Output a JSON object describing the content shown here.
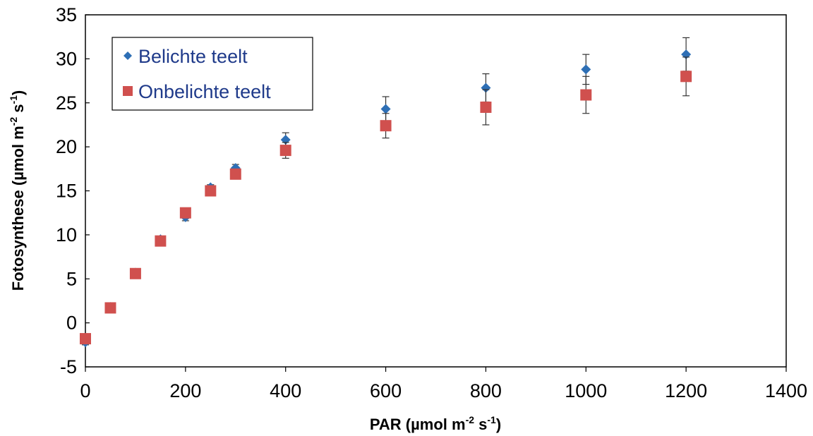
{
  "chart_data": {
    "type": "scatter",
    "xlabel": "PAR (µmol m",
    "xlabel_sup1": "-2",
    "xlabel_mid": " s",
    "xlabel_sup2": "-1",
    "xlabel_end": ")",
    "ylabel": "Fotosynthese (µmol m",
    "ylabel_sup1": "-2",
    "ylabel_mid": " s",
    "ylabel_sup2": "-1",
    "ylabel_end": ")",
    "xlim": [
      0,
      1400
    ],
    "ylim": [
      -5,
      35
    ],
    "xticks": [
      0,
      200,
      400,
      600,
      800,
      1000,
      1200,
      1400
    ],
    "yticks": [
      -5,
      0,
      5,
      10,
      15,
      20,
      25,
      30,
      35
    ],
    "grid": false,
    "legend_position": "top-left",
    "series": [
      {
        "name": "Belichte teelt",
        "marker": "diamond",
        "color": "#2e6fb5",
        "x": [
          0,
          50,
          100,
          150,
          200,
          250,
          300,
          400,
          600,
          800,
          1000,
          1200
        ],
        "y": [
          -2.2,
          1.8,
          5.7,
          9.5,
          12.0,
          15.4,
          17.6,
          20.8,
          24.3,
          26.7,
          28.8,
          30.5
        ],
        "err": [
          0.3,
          0.2,
          0.3,
          0.3,
          0.4,
          0.3,
          0.4,
          0.8,
          1.4,
          1.6,
          1.7,
          1.9
        ]
      },
      {
        "name": "Onbelichte teelt",
        "marker": "square",
        "color": "#d0504e",
        "x": [
          0,
          50,
          100,
          150,
          200,
          250,
          300,
          400,
          600,
          800,
          1000,
          1200
        ],
        "y": [
          -1.8,
          1.7,
          5.6,
          9.3,
          12.5,
          15.0,
          16.9,
          19.6,
          22.4,
          24.5,
          25.9,
          28.0
        ],
        "err": [
          0.3,
          0.2,
          0.3,
          0.3,
          0.4,
          0.3,
          0.4,
          0.9,
          1.4,
          2.0,
          2.1,
          2.2
        ]
      }
    ]
  }
}
